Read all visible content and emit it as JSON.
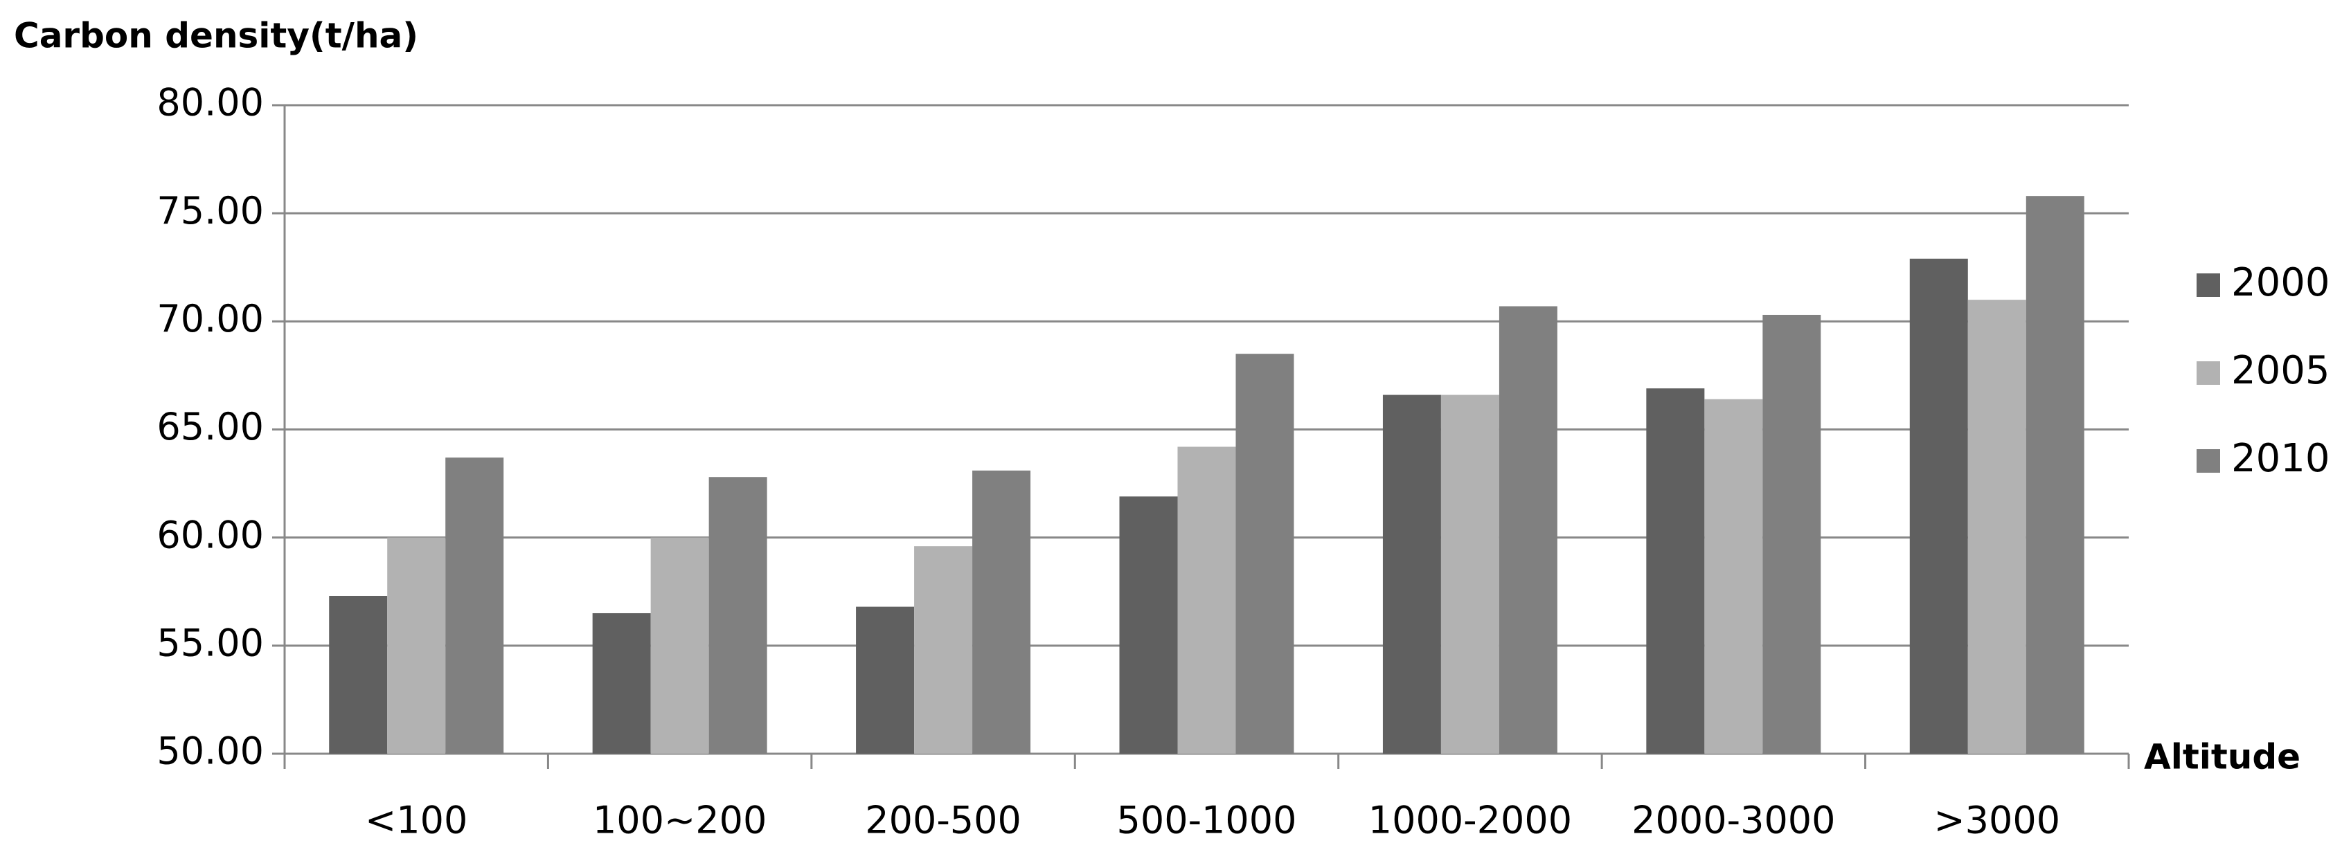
{
  "chart_data": {
    "type": "bar",
    "title": "Carbon density(t/ha)",
    "x_label": "Altitude",
    "categories": [
      "<100",
      "100~200",
      "200-500",
      "500-1000",
      "1000-2000",
      "2000-3000",
      ">3000"
    ],
    "series": [
      {
        "name": "2000",
        "color": "#606060",
        "values": [
          57.3,
          56.5,
          56.8,
          61.9,
          66.6,
          66.9,
          72.9
        ]
      },
      {
        "name": "2005",
        "color": "#b2b2b2",
        "values": [
          60.0,
          60.0,
          59.6,
          64.2,
          66.6,
          66.4,
          71.0
        ]
      },
      {
        "name": "2010",
        "color": "#808080",
        "values": [
          63.7,
          62.8,
          63.1,
          68.5,
          70.7,
          70.3,
          75.8
        ]
      }
    ],
    "ylim": [
      50,
      80
    ],
    "yticks": [
      {
        "value": 50,
        "label": "50.00"
      },
      {
        "value": 55,
        "label": "55.00"
      },
      {
        "value": 60,
        "label": "60.00"
      },
      {
        "value": 65,
        "label": "65.00"
      },
      {
        "value": 70,
        "label": "70.00"
      },
      {
        "value": 75,
        "label": "75.00"
      },
      {
        "value": 80,
        "label": "80.00"
      }
    ],
    "grid": true,
    "legend": "right"
  }
}
